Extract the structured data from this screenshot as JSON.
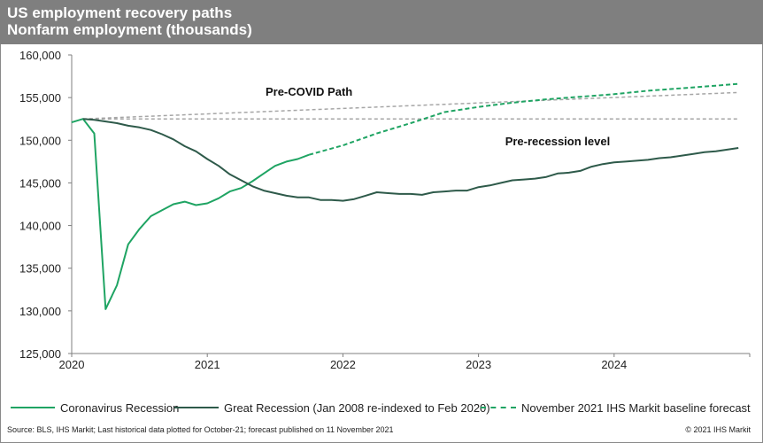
{
  "header": {
    "title_line1": "US employment recovery paths",
    "title_line2": "Nonfarm employment (thousands)"
  },
  "colors": {
    "header_bg": "#7f7f7f",
    "coronavirus": "#1fa463",
    "great_recession": "#2e5a4a",
    "forecast": "#1fa463",
    "reference": "#a6a6a6",
    "axis": "#7f7f7f"
  },
  "footer": {
    "source": "Source: BLS, IHS Markit; Last historical data plotted for October-21;  forecast published on 11 November 2021",
    "copyright": "© 2021  IHS Markit"
  },
  "chart_data": {
    "type": "line",
    "title": "US employment recovery paths",
    "subtitle": "Nonfarm employment (thousands)",
    "xlabel": "",
    "ylabel": "",
    "x_unit": "month index from Jan 2020 (0) to Dec 2024 (59)",
    "xlim": [
      0,
      60
    ],
    "ylim": [
      125000,
      160000
    ],
    "yticks": [
      125000,
      130000,
      135000,
      140000,
      145000,
      150000,
      155000,
      160000
    ],
    "ytick_labels": [
      "125,000",
      "130,000",
      "135,000",
      "140,000",
      "145,000",
      "150,000",
      "155,000",
      "160,000"
    ],
    "xticks": [
      0,
      12,
      24,
      36,
      48,
      60
    ],
    "xtick_labels": [
      "2020",
      "2021",
      "2022",
      "2023",
      "2024",
      ""
    ],
    "grid": false,
    "legend_position": "bottom",
    "annotations": [
      {
        "text": "Pre-COVID Path",
        "x": 21,
        "y": 155200
      },
      {
        "text": "Pre-recession  level",
        "x": 43,
        "y": 149400
      }
    ],
    "series": [
      {
        "name": "Coronavirus Recession",
        "style": "solid",
        "x": [
          0,
          1,
          2,
          3,
          4,
          5,
          6,
          7,
          8,
          9,
          10,
          11,
          12,
          13,
          14,
          15,
          16,
          17,
          18,
          19,
          20,
          21
        ],
        "values": [
          152100,
          152500,
          150800,
          130200,
          133000,
          137800,
          139600,
          141100,
          141800,
          142500,
          142800,
          142400,
          142600,
          143200,
          144000,
          144400,
          145200,
          146100,
          147000,
          147500,
          147800,
          148300
        ]
      },
      {
        "name": "Great Recession (Jan 2008 re-indexed to Feb 2020)",
        "style": "solid",
        "x": [
          1,
          2,
          3,
          4,
          5,
          6,
          7,
          8,
          9,
          10,
          11,
          12,
          13,
          14,
          15,
          16,
          17,
          18,
          19,
          20,
          21,
          22,
          23,
          24,
          25,
          26,
          27,
          28,
          29,
          30,
          31,
          32,
          33,
          34,
          35,
          36,
          37,
          38,
          39,
          40,
          41,
          42,
          43,
          44,
          45,
          46,
          47,
          48,
          49,
          50,
          51,
          52,
          53,
          54,
          55,
          56,
          57,
          58,
          59
        ],
        "values": [
          152500,
          152400,
          152200,
          152000,
          151700,
          151500,
          151200,
          150700,
          150100,
          149300,
          148700,
          147800,
          147000,
          146000,
          145300,
          144600,
          144100,
          143800,
          143500,
          143300,
          143300,
          143000,
          143000,
          142900,
          143100,
          143500,
          143900,
          143800,
          143700,
          143700,
          143600,
          143900,
          144000,
          144100,
          144100,
          144500,
          144700,
          145000,
          145300,
          145400,
          145500,
          145700,
          146100,
          146200,
          146400,
          146900,
          147200,
          147400,
          147500,
          147600,
          147700,
          147900,
          148000,
          148200,
          148400,
          148600,
          148700,
          148900,
          149100
        ]
      },
      {
        "name": "November 2021 IHS Markit baseline forecast",
        "style": "dashed",
        "x": [
          21,
          24,
          27,
          30,
          33,
          36,
          39,
          42,
          45,
          48,
          51,
          54,
          57,
          59
        ],
        "values": [
          148300,
          149400,
          150800,
          152000,
          153300,
          153900,
          154400,
          154800,
          155100,
          155400,
          155800,
          156100,
          156400,
          156600
        ]
      },
      {
        "name": "Pre-COVID Path",
        "style": "dashed-reference",
        "x": [
          1,
          59
        ],
        "values": [
          152500,
          155600
        ]
      },
      {
        "name": "Pre-recession level",
        "style": "dashed-reference",
        "x": [
          1,
          59
        ],
        "values": [
          152500,
          152500
        ]
      }
    ]
  }
}
